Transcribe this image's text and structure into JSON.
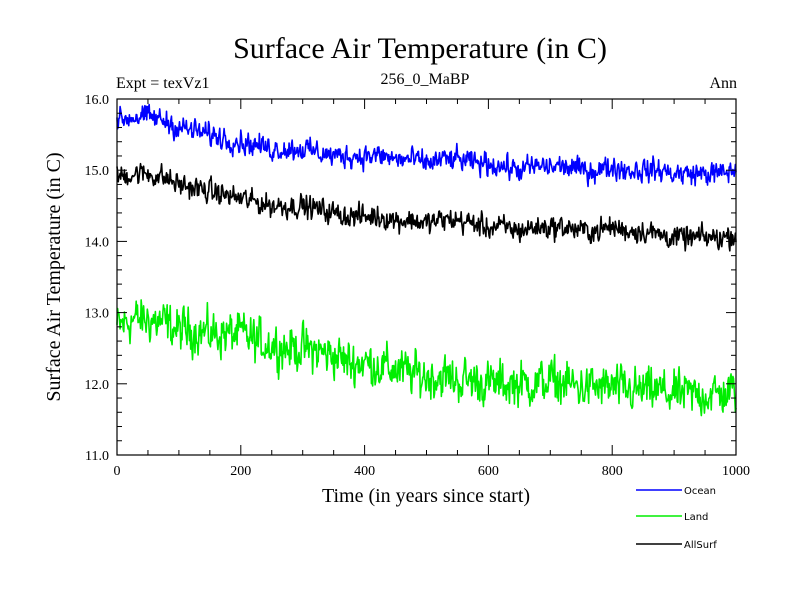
{
  "chart_data": {
    "type": "line",
    "title": "Surface Air Temperature (in C)",
    "subtitle_left": "Expt = texVz1",
    "subtitle_center": "256_0_MaBP",
    "subtitle_right": "Ann",
    "xlabel": "Time (in years since start)",
    "ylabel": "Surface Air Temperature (in C)",
    "xlim": [
      0,
      1000
    ],
    "ylim": [
      11.0,
      16.0
    ],
    "xticks": [
      0,
      200,
      400,
      600,
      800,
      1000
    ],
    "xtick_labels": [
      "0",
      "200",
      "400",
      "600",
      "800",
      "1000"
    ],
    "yticks": [
      11.0,
      12.0,
      13.0,
      14.0,
      15.0,
      16.0
    ],
    "ytick_labels": [
      "11.0",
      "12.0",
      "13.0",
      "14.0",
      "15.0",
      "16.0"
    ],
    "legend_position": "bottom-right, below plot",
    "series": [
      {
        "name": "Ocean",
        "color": "#0000ff",
        "x": [
          0,
          25,
          50,
          75,
          100,
          125,
          150,
          175,
          200,
          225,
          250,
          275,
          300,
          325,
          350,
          375,
          400,
          425,
          450,
          475,
          500,
          525,
          550,
          575,
          600,
          625,
          650,
          675,
          700,
          725,
          750,
          775,
          800,
          825,
          850,
          875,
          900,
          925,
          950,
          975,
          1000
        ],
        "values": [
          15.7,
          15.75,
          15.75,
          15.7,
          15.6,
          15.55,
          15.5,
          15.45,
          15.4,
          15.35,
          15.3,
          15.3,
          15.3,
          15.25,
          15.2,
          15.2,
          15.2,
          15.2,
          15.15,
          15.15,
          15.1,
          15.15,
          15.15,
          15.1,
          15.1,
          15.05,
          15.0,
          15.05,
          15.05,
          15.05,
          15.0,
          15.0,
          15.05,
          15.0,
          15.0,
          15.0,
          14.95,
          14.95,
          14.95,
          14.95,
          15.0
        ],
        "amplitude": 0.13
      },
      {
        "name": "Land",
        "color": "#00ee00",
        "x": [
          0,
          25,
          50,
          75,
          100,
          125,
          150,
          175,
          200,
          225,
          250,
          275,
          300,
          325,
          350,
          375,
          400,
          425,
          450,
          475,
          500,
          525,
          550,
          575,
          600,
          625,
          650,
          675,
          700,
          725,
          750,
          775,
          800,
          825,
          850,
          875,
          900,
          925,
          950,
          975,
          1000
        ],
        "values": [
          12.8,
          12.9,
          12.9,
          12.85,
          12.75,
          12.75,
          12.7,
          12.7,
          12.7,
          12.6,
          12.55,
          12.5,
          12.5,
          12.45,
          12.4,
          12.3,
          12.3,
          12.25,
          12.2,
          12.15,
          12.1,
          12.1,
          12.05,
          12.05,
          12.0,
          12.0,
          12.0,
          12.0,
          12.05,
          12.0,
          11.95,
          11.95,
          11.95,
          11.9,
          11.9,
          11.9,
          11.85,
          11.85,
          11.85,
          11.85,
          11.9
        ],
        "amplitude": 0.25
      },
      {
        "name": "AllSurf",
        "color": "#000000",
        "x": [
          0,
          25,
          50,
          75,
          100,
          125,
          150,
          175,
          200,
          225,
          250,
          275,
          300,
          325,
          350,
          375,
          400,
          425,
          450,
          475,
          500,
          525,
          550,
          575,
          600,
          625,
          650,
          675,
          700,
          725,
          750,
          775,
          800,
          825,
          850,
          875,
          900,
          925,
          950,
          975,
          1000
        ],
        "values": [
          14.9,
          14.95,
          14.95,
          14.9,
          14.8,
          14.75,
          14.7,
          14.65,
          14.6,
          14.55,
          14.5,
          14.5,
          14.5,
          14.45,
          14.4,
          14.35,
          14.35,
          14.35,
          14.3,
          14.3,
          14.25,
          14.3,
          14.3,
          14.25,
          14.2,
          14.2,
          14.15,
          14.2,
          14.2,
          14.2,
          14.15,
          14.15,
          14.2,
          14.15,
          14.15,
          14.1,
          14.05,
          14.05,
          14.05,
          14.05,
          14.1
        ],
        "amplitude": 0.13
      }
    ]
  }
}
